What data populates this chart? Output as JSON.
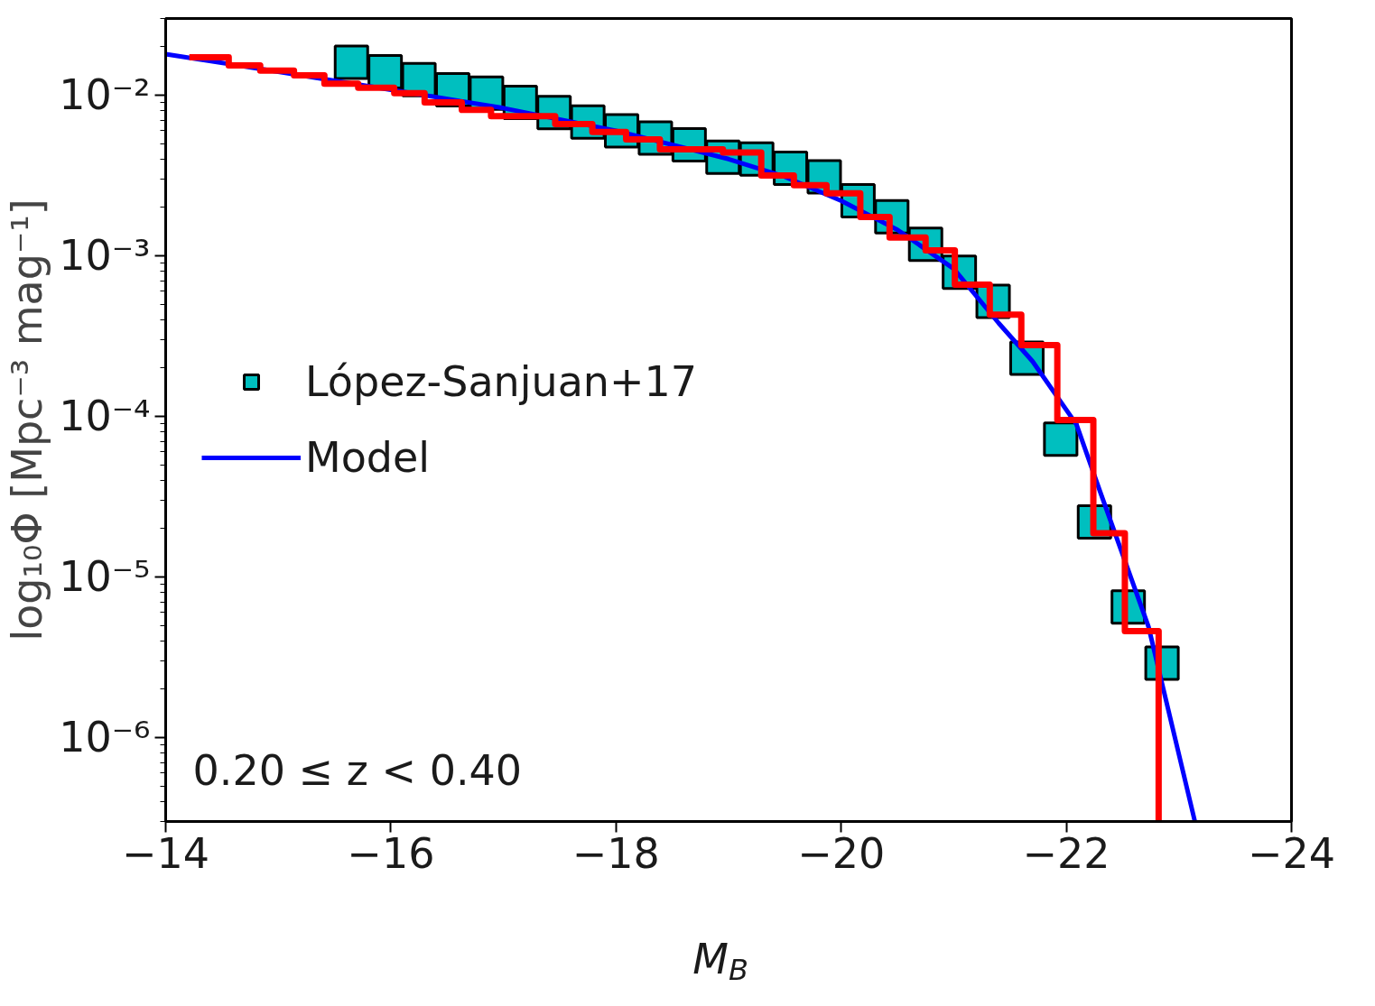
{
  "chart_data": {
    "type": "scatter",
    "xlabel": "M$_{B}$",
    "ylabel": "log₁₀Φ [Mpc⁻³ mag⁻¹]",
    "log": "y",
    "grid": false,
    "legend": "left",
    "xlim": [
      -14,
      -24
    ],
    "xticks": [
      {
        "value": -14,
        "label": "−14"
      },
      {
        "value": -16,
        "label": "−16"
      },
      {
        "value": -18,
        "label": "−18"
      },
      {
        "value": -20,
        "label": "−20"
      },
      {
        "value": -22,
        "label": "−22"
      },
      {
        "value": -24,
        "label": "−24"
      }
    ],
    "ylim": [
      3e-07,
      0.03
    ],
    "yticks": [
      {
        "value": 1e-06,
        "label": "10⁻⁶"
      },
      {
        "value": 1e-05,
        "label": "10⁻⁵"
      },
      {
        "value": 0.0001,
        "label": "10⁻⁴"
      },
      {
        "value": 0.001,
        "label": "10⁻³"
      },
      {
        "value": 0.01,
        "label": "10⁻²"
      }
    ],
    "annotations": [
      "0.20 ≤ z < 0.40"
    ],
    "series": [
      {
        "name": "López-Sanjuan+17",
        "color": "#00bfbf",
        "marker": "square",
        "x": [
          -15.65,
          -15.95,
          -16.25,
          -16.55,
          -16.85,
          -17.15,
          -17.45,
          -17.75,
          -18.05,
          -18.35,
          -18.65,
          -18.95,
          -19.25,
          -19.55,
          -19.85,
          -20.15,
          -20.45,
          -20.75,
          -21.05,
          -21.35,
          -21.65,
          -21.95,
          -22.25,
          -22.55,
          -22.85
        ],
        "values": [
          0.016,
          0.014,
          0.0125,
          0.0108,
          0.0103,
          0.009,
          0.0078,
          0.0068,
          0.006,
          0.0054,
          0.0049,
          0.0041,
          0.004,
          0.0035,
          0.0031,
          0.0022,
          0.00175,
          0.00118,
          0.00079,
          0.00052,
          0.00023,
          7.2e-05,
          2.2e-05,
          6.5e-06,
          2.9e-06
        ]
      },
      {
        "type": "line",
        "name": "Model",
        "color": "#0000ff",
        "marker": "none",
        "x": [
          -14,
          -15,
          -16,
          -17,
          -18,
          -19,
          -19.5,
          -20,
          -20.5,
          -21,
          -21.4,
          -21.7,
          -22.09,
          -22.3,
          -22.73,
          -23.14
        ],
        "values": [
          0.018,
          0.014,
          0.0108,
          0.0083,
          0.006,
          0.004,
          0.0031,
          0.0022,
          0.00145,
          0.00083,
          0.00038,
          0.00022,
          8.9e-05,
          3.4e-05,
          4.9e-06,
          3.04e-07
        ]
      },
      {
        "type": "step",
        "color": "#ff0000",
        "marker": "none",
        "x": [
          -14.21,
          -14.56,
          -14.84,
          -15.14,
          -15.41,
          -15.71,
          -16.03,
          -16.3,
          -16.63,
          -16.89,
          -17.18,
          -17.46,
          -17.79,
          -18.09,
          -18.39,
          -18.67,
          -18.95,
          -19.29,
          -19.58,
          -19.87,
          -20.17,
          -20.43,
          -20.75,
          -21.01,
          -21.32,
          -21.6,
          -21.92,
          -22.24,
          -22.52,
          -22.82
        ],
        "values": [
          0.0172,
          0.0153,
          0.0142,
          0.0133,
          0.0118,
          0.0111,
          0.0103,
          0.009,
          0.0081,
          0.0074,
          0.0074,
          0.0066,
          0.0059,
          0.0053,
          0.0046,
          0.0046,
          0.0044,
          0.00316,
          0.00275,
          0.00245,
          0.00174,
          0.0013,
          0.00108,
          0.00066,
          0.00043,
          0.000278,
          9.5e-05,
          1.87e-05,
          4.6e-06,
          3e-07
        ]
      }
    ]
  }
}
